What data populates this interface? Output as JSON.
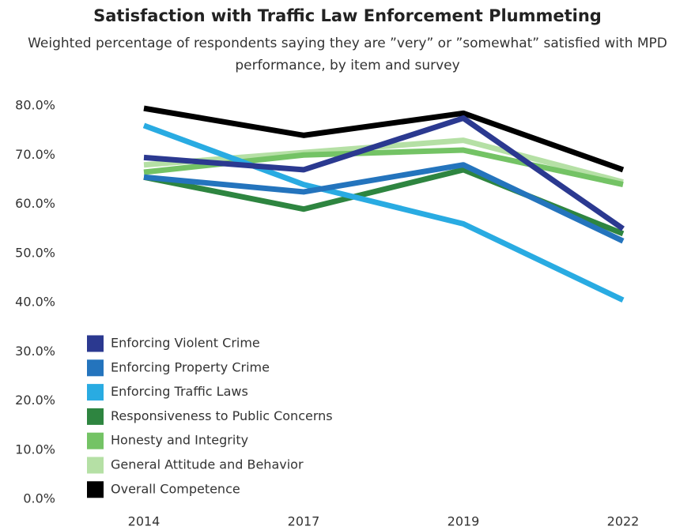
{
  "chart_data": {
    "type": "line",
    "title": "Satisfaction with Traffic Law Enforcement Plummeting",
    "subtitle": "Weighted percentage of respondents saying they are ”very” or ”somewhat” satisfied with MPD performance, by item and survey",
    "categories": [
      "2014",
      "2017",
      "2019",
      "2022"
    ],
    "ylim": [
      0,
      80
    ],
    "yticks": [
      {
        "value": 0,
        "label": "0.0%"
      },
      {
        "value": 10,
        "label": "10.0%"
      },
      {
        "value": 20,
        "label": "20.0%"
      },
      {
        "value": 30,
        "label": "30.0%"
      },
      {
        "value": 40,
        "label": "40.0%"
      },
      {
        "value": 50,
        "label": "50.0%"
      },
      {
        "value": 60,
        "label": "60.0%"
      },
      {
        "value": 70,
        "label": "70.0%"
      },
      {
        "value": 80,
        "label": "80.0%"
      }
    ],
    "series": [
      {
        "name": "Enforcing Violent Crime",
        "color": "#2b3990",
        "values": [
          69.5,
          67.0,
          77.5,
          55.0
        ]
      },
      {
        "name": "Enforcing Property Crime",
        "color": "#2474bd",
        "values": [
          65.5,
          62.5,
          68.0,
          52.5
        ]
      },
      {
        "name": "Enforcing Traffic Laws",
        "color": "#29abe2",
        "values": [
          76.0,
          64.0,
          56.0,
          40.5
        ]
      },
      {
        "name": "Responsiveness to Public Concerns",
        "color": "#2e8540",
        "values": [
          65.5,
          59.0,
          67.0,
          54.0
        ]
      },
      {
        "name": "Honesty and Integrity",
        "color": "#74c365",
        "values": [
          66.5,
          70.0,
          71.0,
          64.0
        ]
      },
      {
        "name": "General Attitude and Behavior",
        "color": "#b5e0a5",
        "values": [
          68.0,
          70.5,
          73.0,
          64.5
        ]
      },
      {
        "name": "Overall Competence",
        "color": "#000000",
        "values": [
          79.5,
          74.0,
          78.5,
          67.0
        ]
      }
    ]
  }
}
